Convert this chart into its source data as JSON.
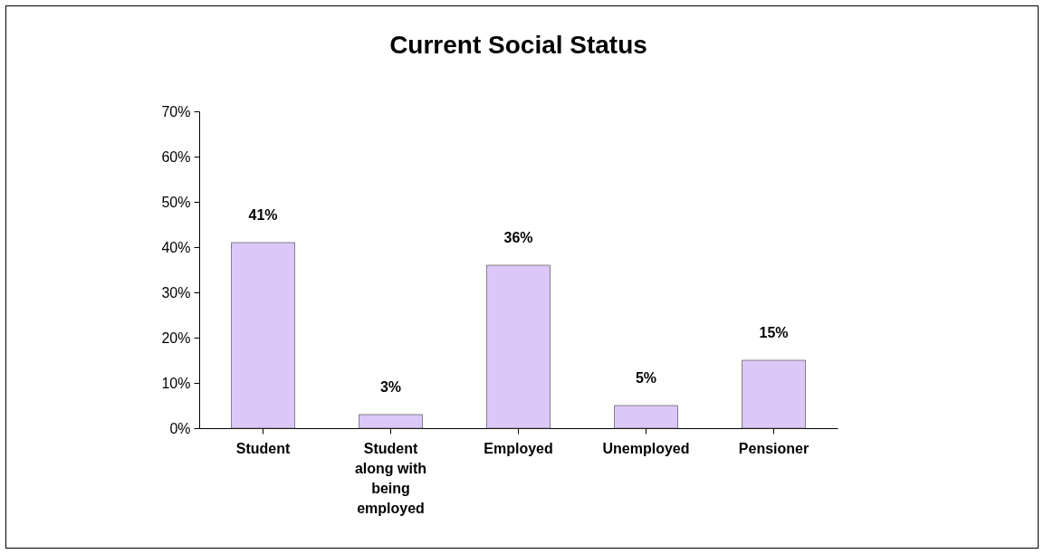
{
  "chart_data": {
    "type": "bar",
    "title": "Current Social Status",
    "categories": [
      "Student",
      "Student along with being employed",
      "Employed",
      "Unemployed",
      "Pensioner"
    ],
    "values": [
      41,
      3,
      36,
      5,
      15
    ],
    "value_labels": [
      "41%",
      "3%",
      "36%",
      "5%",
      "15%"
    ],
    "color": "#dcc8f8",
    "ylim": [
      0,
      70
    ],
    "yticks": [
      {
        "value": 0,
        "label": "0%"
      },
      {
        "value": 10,
        "label": "10%"
      },
      {
        "value": 20,
        "label": "20%"
      },
      {
        "value": 30,
        "label": "30%"
      },
      {
        "value": 40,
        "label": "40%"
      },
      {
        "value": 50,
        "label": "50%"
      },
      {
        "value": 60,
        "label": "60%"
      },
      {
        "value": 70,
        "label": "70%"
      }
    ],
    "grid": false
  }
}
